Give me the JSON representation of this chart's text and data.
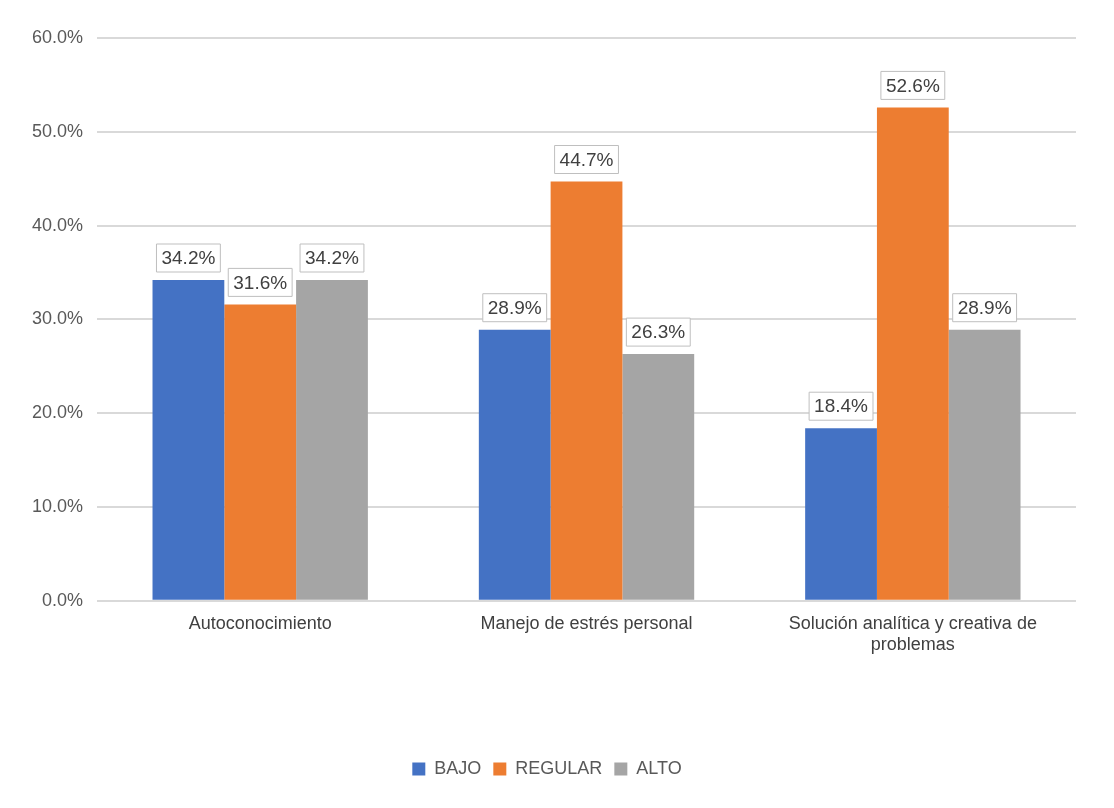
{
  "chart_data": {
    "type": "bar",
    "categories": [
      "Autoconocimiento",
      "Manejo de estrés personal",
      "Solución analítica y creativa de problemas"
    ],
    "series": [
      {
        "name": "BAJO",
        "color": "#4472c4",
        "values": [
          34.2,
          28.9,
          18.4
        ],
        "value_labels": [
          "34.2%",
          "28.9%",
          "18.4%"
        ]
      },
      {
        "name": "REGULAR",
        "color": "#ed7d31",
        "values": [
          31.6,
          44.7,
          52.6
        ],
        "value_labels": [
          "31.6%",
          "44.7%",
          "52.6%"
        ]
      },
      {
        "name": "ALTO",
        "color": "#a5a5a5",
        "values": [
          34.2,
          26.3,
          28.9
        ],
        "value_labels": [
          "34.2%",
          "26.3%",
          "28.9%"
        ]
      }
    ],
    "ylim": [
      0,
      60
    ],
    "yticks": [
      {
        "value": 0,
        "label": "0.0%"
      },
      {
        "value": 10,
        "label": "10.0%"
      },
      {
        "value": 20,
        "label": "20.0%"
      },
      {
        "value": 30,
        "label": "30.0%"
      },
      {
        "value": 40,
        "label": "40.0%"
      },
      {
        "value": 50,
        "label": "50.0%"
      },
      {
        "value": 60,
        "label": "60.0%"
      }
    ],
    "grid": "y",
    "legend": "bottom"
  }
}
